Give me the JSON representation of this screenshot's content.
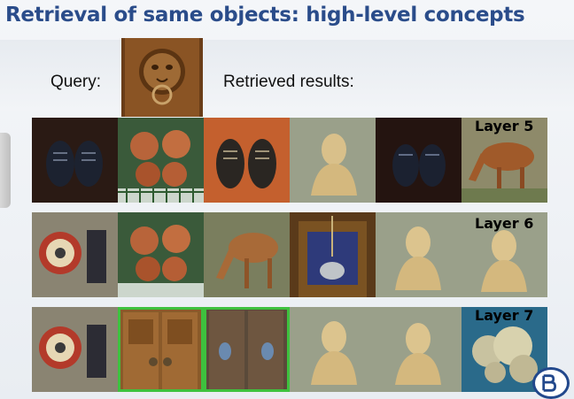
{
  "slide": {
    "title": "Retrieval of same objects: high-level concepts",
    "query_label": "Query:",
    "results_label": "Retrieved results:"
  },
  "rows": [
    {
      "layer_label": "Layer 5",
      "tiles": [
        "dark-shoes",
        "copper-faces",
        "brown-shoes",
        "stone-statue",
        "dark-shoes",
        "horse"
      ]
    },
    {
      "layer_label": "Layer 6",
      "tiles": [
        "astronomical-clock",
        "copper-faces",
        "horse",
        "church-altar",
        "stone-statue",
        "stone-statue"
      ]
    },
    {
      "layer_label": "Layer 7",
      "tiles": [
        "astronomical-clock",
        "wooden-doors",
        "wooden-doors",
        "stone-statue",
        "stone-statue",
        "coral"
      ],
      "highlighted": [
        1,
        2
      ]
    }
  ],
  "colors": {
    "title": "#2a4c8a",
    "highlight": "#3ec13e",
    "logo": "#22488c"
  }
}
